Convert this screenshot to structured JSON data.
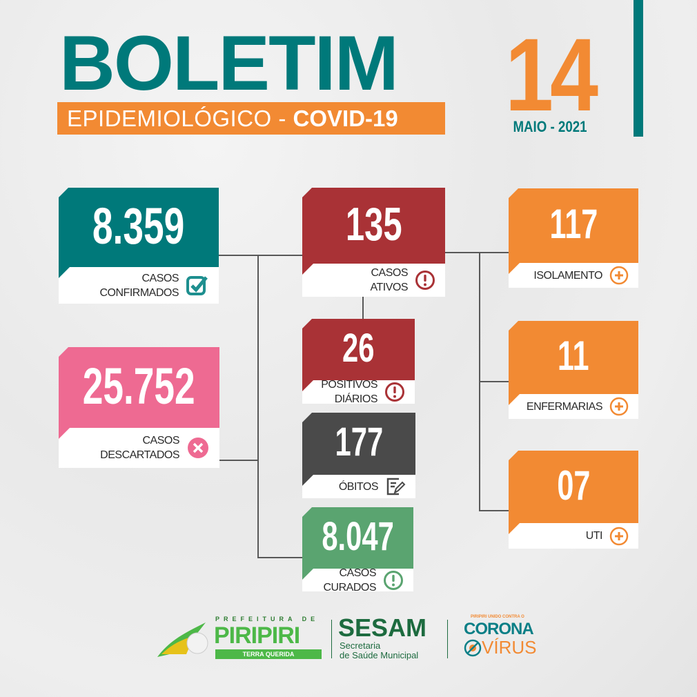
{
  "header": {
    "title": "BOLETIM",
    "subtitle_light": "EPIDEMIOLÓGICO - ",
    "subtitle_bold": "COVID-19",
    "day": "14",
    "month_year": "MAIO - 2021"
  },
  "colors": {
    "teal": "#00797a",
    "orange": "#f28a33",
    "red": "#a93236",
    "pink": "#ee6a92",
    "gray": "#4a4a4a",
    "green": "#5aa470"
  },
  "cards": {
    "confirmados": {
      "value": "8.359",
      "line1": "CASOS",
      "line2": "CONFIRMADOS",
      "icon": "check-square-icon"
    },
    "descartados": {
      "value": "25.752",
      "line1": "CASOS",
      "line2": "DESCARTADOS",
      "icon": "x-circle-icon"
    },
    "ativos": {
      "value": "135",
      "line1": "CASOS",
      "line2": "ATIVOS",
      "icon": "exclamation-circle-icon"
    },
    "positivos": {
      "value": "26",
      "line1": "POSITIVOS",
      "line2": "DIÁRIOS",
      "icon": "exclamation-circle-icon"
    },
    "obitos": {
      "value": "177",
      "line1": "ÓBITOS",
      "icon": "document-pen-icon"
    },
    "curados": {
      "value": "8.047",
      "line1": "CASOS",
      "line2": "CURADOS",
      "icon": "exclamation-circle-icon"
    },
    "isolamento": {
      "value": "117",
      "line1": "ISOLAMENTO",
      "icon": "plus-circle-icon"
    },
    "enfermarias": {
      "value": "11",
      "line1": "ENFERMARIAS",
      "icon": "plus-circle-icon"
    },
    "uti": {
      "value": "07",
      "line1": "UTI",
      "icon": "plus-circle-icon"
    }
  },
  "footer": {
    "piripiri": {
      "top": "PREFEITURA DE",
      "name": "PIRIPIRI",
      "tagline": "TERRA QUERIDA"
    },
    "sesam": {
      "name": "SESAM",
      "line1": "Secretaria",
      "line2": "de Saúde Municipal"
    },
    "corona": {
      "top": "PIRIPIRI UNIDO CONTRA O",
      "line1": "CORONA",
      "line2": "VÍRUS"
    }
  }
}
